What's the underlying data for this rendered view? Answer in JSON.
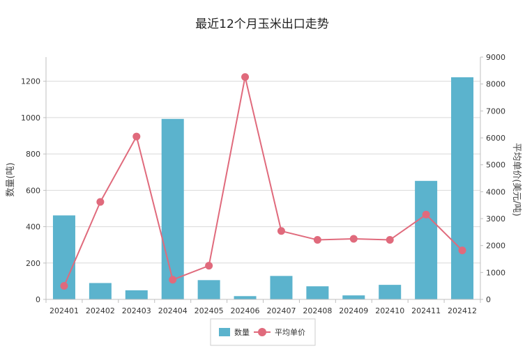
{
  "chart_data": {
    "type": "bar",
    "title": "最近12个月玉米出口走势",
    "categories": [
      "202401",
      "202402",
      "202403",
      "202404",
      "202405",
      "202406",
      "202407",
      "202408",
      "202409",
      "202410",
      "202411",
      "202412"
    ],
    "series": [
      {
        "name": "数量",
        "type": "bar",
        "axis": "left",
        "color": "#5bb3cd",
        "values": [
          462,
          90,
          50,
          993,
          106,
          18,
          129,
          72,
          22,
          80,
          652,
          1222
        ]
      },
      {
        "name": "平均单价",
        "type": "line",
        "axis": "right",
        "color": "#e06a7c",
        "values": [
          500,
          3620,
          6050,
          730,
          1250,
          8260,
          2540,
          2210,
          2250,
          2210,
          3150,
          1820
        ]
      }
    ],
    "ylabel": "数量(吨)",
    "y2label": "平均单价(美元/吨)",
    "ylim": [
      0,
      1333
    ],
    "y2lim": [
      0,
      9000
    ],
    "yticks": [
      0,
      200,
      400,
      600,
      800,
      1000,
      1200
    ],
    "y2ticks": [
      0,
      1000,
      2000,
      3000,
      4000,
      5000,
      6000,
      7000,
      8000,
      9000
    ],
    "grid": true,
    "legend_position": "bottom-center"
  }
}
